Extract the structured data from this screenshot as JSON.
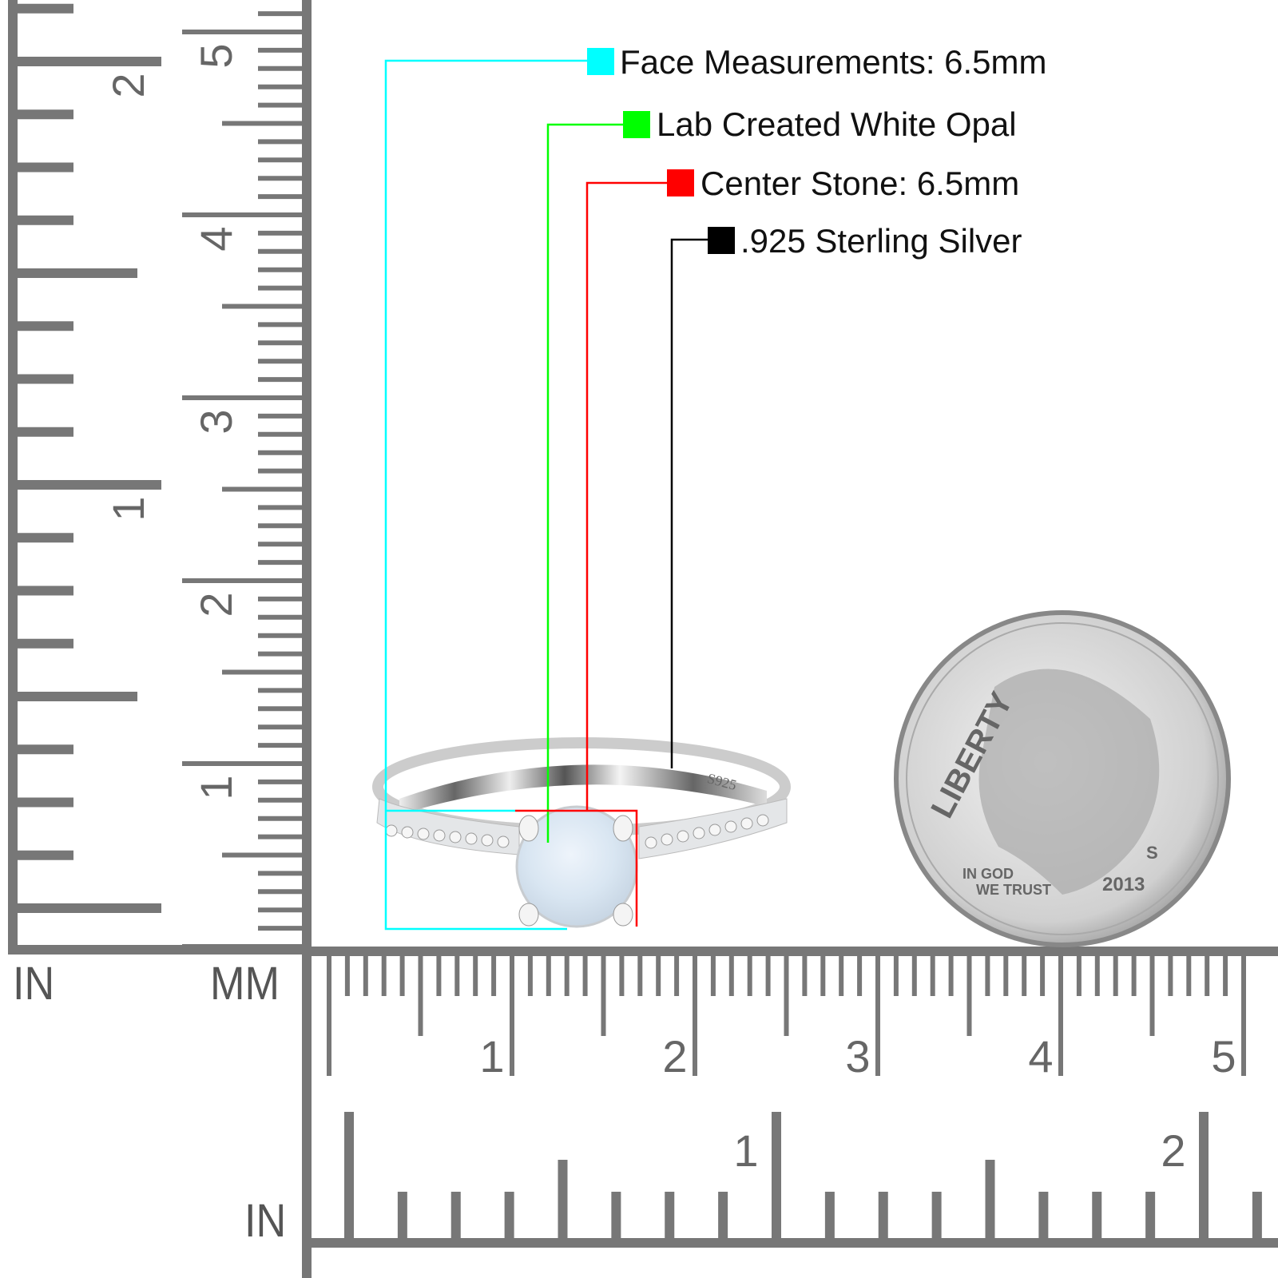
{
  "callouts": [
    {
      "label": "Face Measurements: 6.5mm",
      "color": "#00ffff"
    },
    {
      "label": "Lab Created White Opal",
      "color": "#00ff00"
    },
    {
      "label": "Center Stone: 6.5mm",
      "color": "#ff0000"
    },
    {
      "label": ".925 Sterling Silver",
      "color": "#000000"
    }
  ],
  "rulers": {
    "left_unit_in": "IN",
    "left_unit_mm": "MM",
    "bottom_unit_in": "IN",
    "mm_labels": [
      "1",
      "2",
      "3",
      "4",
      "5"
    ],
    "in_labels": [
      "1",
      "2"
    ],
    "color": "#777777"
  },
  "ring": {
    "stamp": "S925"
  },
  "coin": {
    "legend": "LIBERTY",
    "motto_1": "IN GOD",
    "motto_2": "WE TRUST",
    "year": "2013",
    "mint_mark": "S"
  }
}
